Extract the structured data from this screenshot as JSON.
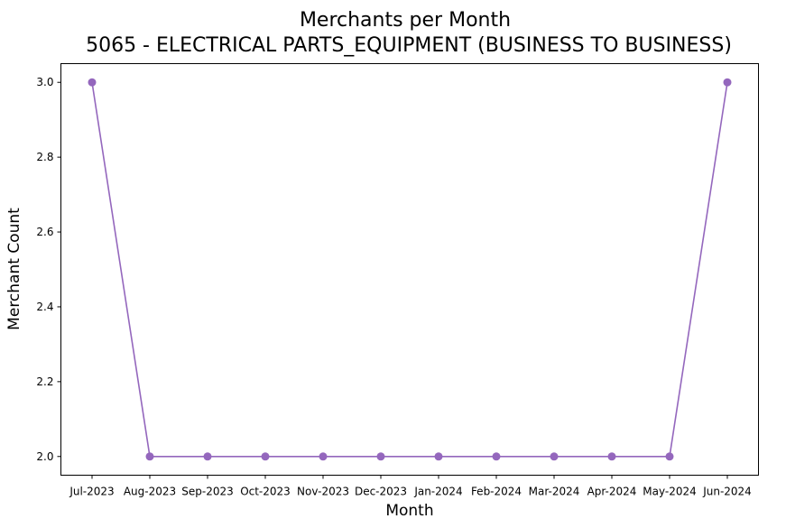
{
  "chart_data": {
    "type": "line",
    "title": "Merchants per Month",
    "subtitle": "5065 - ELECTRICAL PARTS_EQUIPMENT (BUSINESS TO BUSINESS)",
    "xlabel": "Month",
    "ylabel": "Merchant Count",
    "categories": [
      "Jul-2023",
      "Aug-2023",
      "Sep-2023",
      "Oct-2023",
      "Nov-2023",
      "Dec-2023",
      "Jan-2024",
      "Feb-2024",
      "Mar-2024",
      "Apr-2024",
      "May-2024",
      "Jun-2024"
    ],
    "series": [
      {
        "values": [
          3,
          2,
          2,
          2,
          2,
          2,
          2,
          2,
          2,
          2,
          2,
          3
        ],
        "color": "#9467bd",
        "marker": "circle"
      }
    ],
    "ylim": [
      1.95,
      3.05
    ],
    "yticks": [
      2.0,
      2.2,
      2.4,
      2.6,
      2.8,
      3.0
    ],
    "ytick_labels": [
      "2.0",
      "2.2",
      "2.4",
      "2.6",
      "2.8",
      "3.0"
    ],
    "grid": false,
    "legend": false
  }
}
